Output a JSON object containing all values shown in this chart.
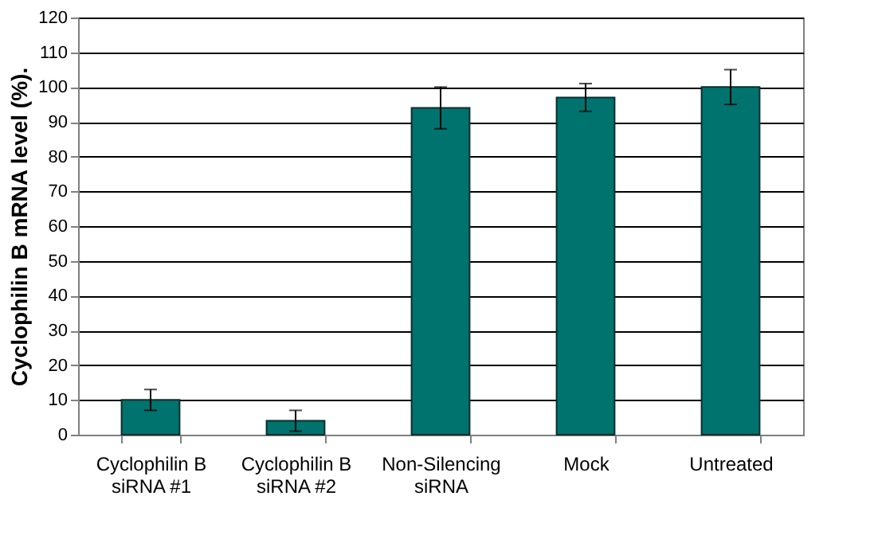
{
  "chart_data": {
    "type": "bar",
    "ylabel": "Cyclophilin B mRNA level (%).",
    "categories": [
      "Cyclophilin B\nsiRNA #1",
      "Cyclophilin B\nsiRNA #2",
      "Non-Silencing\nsiRNA",
      "Mock",
      "Untreated"
    ],
    "values": [
      10,
      4,
      94,
      97,
      100
    ],
    "errors": [
      3,
      3,
      6,
      4,
      5
    ],
    "color": "#00736e",
    "ylim": [
      0,
      120
    ],
    "yticks": [
      0,
      10,
      20,
      30,
      40,
      50,
      60,
      70,
      80,
      90,
      100,
      110,
      120
    ],
    "grid": "y"
  }
}
